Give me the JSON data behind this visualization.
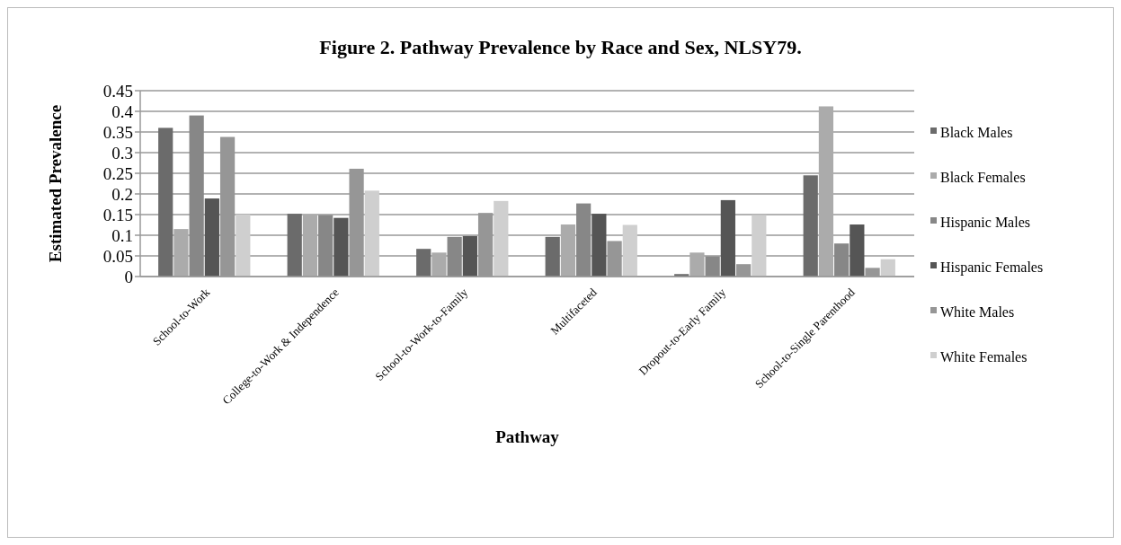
{
  "chart_data": {
    "type": "bar",
    "title": "Figure 2. Pathway Prevalence by Race and Sex, NLSY79.",
    "xlabel": "Pathway",
    "ylabel": "Estimated Prevalence",
    "categories": [
      "School-to-Work",
      "College-to-Work & Independence",
      "School-to-Work-to-Family",
      "Multifaceted",
      "Dropout-to-Early Family",
      "School-to-Single Parenthood"
    ],
    "series": [
      {
        "name": "Black Males",
        "color": "#6b6b6b",
        "values": [
          0.36,
          0.152,
          0.067,
          0.096,
          0.006,
          0.245
        ]
      },
      {
        "name": "Black Females",
        "color": "#ababab",
        "values": [
          0.115,
          0.15,
          0.058,
          0.126,
          0.058,
          0.412
        ]
      },
      {
        "name": "Hispanic Males",
        "color": "#878787",
        "values": [
          0.39,
          0.149,
          0.096,
          0.177,
          0.049,
          0.08
        ]
      },
      {
        "name": "Hispanic Females",
        "color": "#555555",
        "values": [
          0.189,
          0.142,
          0.098,
          0.152,
          0.185,
          0.126
        ]
      },
      {
        "name": "White Males",
        "color": "#969696",
        "values": [
          0.338,
          0.261,
          0.154,
          0.086,
          0.03,
          0.021
        ]
      },
      {
        "name": "White Females",
        "color": "#cfcfcf",
        "values": [
          0.15,
          0.208,
          0.183,
          0.125,
          0.149,
          0.042
        ]
      }
    ],
    "ylim": [
      0,
      0.45
    ],
    "yticks": [
      0,
      0.05,
      0.1,
      0.15,
      0.2,
      0.25,
      0.3,
      0.35,
      0.4,
      0.45
    ],
    "grid": "y",
    "legend": "right"
  }
}
